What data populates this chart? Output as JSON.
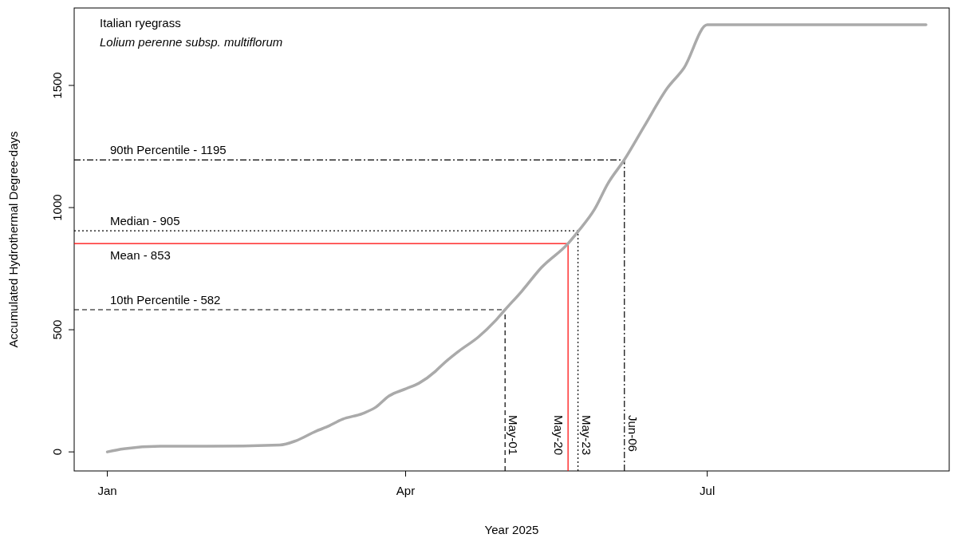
{
  "chart_data": {
    "type": "line",
    "title": "Italian ryegrass",
    "subtitle": "Lolium perenne subsp. multiflorum",
    "xlabel": "Year 2025",
    "ylabel": "Accumulated Hydrothermal Degree-days",
    "x": [
      "2025-01-01",
      "2025-01-06",
      "2025-01-17",
      "2025-01-31",
      "2025-02-22",
      "2025-02-27",
      "2025-03-05",
      "2025-03-08",
      "2025-03-13",
      "2025-03-19",
      "2025-03-23",
      "2025-03-27",
      "2025-04-01",
      "2025-04-05",
      "2025-04-10",
      "2025-04-12",
      "2025-04-17",
      "2025-04-23",
      "2025-04-28",
      "2025-05-01",
      "2025-05-06",
      "2025-05-12",
      "2025-05-20",
      "2025-05-23",
      "2025-05-28",
      "2025-06-01",
      "2025-06-06",
      "2025-06-12",
      "2025-06-19",
      "2025-06-24",
      "2025-07-01",
      "2025-09-05"
    ],
    "series": [
      {
        "color": "#aaaaaa",
        "values": [
          0,
          13,
          23,
          23,
          28,
          46,
          85,
          101,
          134,
          157,
          183,
          229,
          258,
          281,
          330,
          356,
          412,
          471,
          536,
          582,
          657,
          755,
          853,
          902,
          993,
          1098,
          1196,
          1333,
          1490,
          1572,
          1748,
          1748
        ]
      }
    ],
    "xlim": [
      "2024-12-22",
      "2025-09-12"
    ],
    "ylim": [
      -78,
      1817
    ],
    "xticks": [
      {
        "value": "2025-01-01",
        "label": "Jan"
      },
      {
        "value": "2025-04-01",
        "label": "Apr"
      },
      {
        "value": "2025-07-01",
        "label": "Jul"
      }
    ],
    "yticks": [
      0,
      500,
      1000,
      1500
    ],
    "ref_lines": [
      {
        "axis": "y",
        "value": 1195,
        "label": "90th Percentile - 1195",
        "color": "#000000",
        "line_style": "dashdot"
      },
      {
        "axis": "y",
        "value": 905,
        "label": "Median - 905",
        "color": "#000000",
        "line_style": "dotted"
      },
      {
        "axis": "y",
        "value": 853,
        "label": "Mean - 853",
        "color": "#ff0000",
        "line_style": "solid"
      },
      {
        "axis": "y",
        "value": 582,
        "label": "10th Percentile - 582",
        "color": "#000000",
        "line_style": "dashed"
      },
      {
        "axis": "x",
        "value": "2025-05-01",
        "label": "May-01",
        "color": "#000000",
        "line_style": "dashed"
      },
      {
        "axis": "x",
        "value": "2025-05-20",
        "label": "May-20",
        "color": "#ff0000",
        "line_style": "solid"
      },
      {
        "axis": "x",
        "value": "2025-05-23",
        "label": "May-23",
        "color": "#000000",
        "line_style": "dotted"
      },
      {
        "axis": "x",
        "value": "2025-06-06",
        "label": "Jun-06",
        "color": "#000000",
        "line_style": "dashdot"
      }
    ]
  }
}
